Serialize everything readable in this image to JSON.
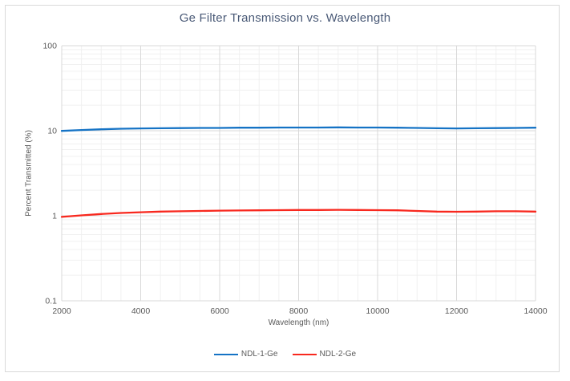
{
  "window": {
    "background": "#ffffff",
    "frame_border_color": "#d9d9d9"
  },
  "styles": {
    "title_color": "#4a5a77",
    "axis_text_color": "#595959",
    "grid_major_color": "#d9d9d9",
    "grid_minor_color": "#f0f0f0"
  },
  "chart_data": {
    "type": "line",
    "title": "Ge Filter Transmission vs. Wavelength",
    "xlabel": "Wavelength (nm)",
    "ylabel": "Percent Transmitted (%)",
    "x_range": [
      2000,
      14000
    ],
    "x_major_ticks": [
      2000,
      4000,
      6000,
      8000,
      10000,
      12000,
      14000
    ],
    "x_minor_step": 500,
    "y_scale": "log",
    "y_range": [
      0.1,
      100
    ],
    "y_major_ticks": [
      100,
      10,
      1,
      0.1
    ],
    "y_major_tick_labels": [
      "100",
      "10",
      "1",
      "0.1"
    ],
    "grid": {
      "major": true,
      "minor": true
    },
    "legend_position": "bottom",
    "x": [
      2000,
      2500,
      3000,
      3500,
      4000,
      4500,
      5000,
      5500,
      6000,
      6500,
      7000,
      7500,
      8000,
      8500,
      9000,
      9500,
      10000,
      10500,
      11000,
      11500,
      12000,
      12500,
      13000,
      13500,
      14000
    ],
    "series": [
      {
        "name": "NDL-1-Ge",
        "color": "#1573c5",
        "values": [
          9.95,
          10.2,
          10.4,
          10.55,
          10.65,
          10.7,
          10.75,
          10.8,
          10.8,
          10.85,
          10.85,
          10.9,
          10.9,
          10.9,
          10.95,
          10.9,
          10.9,
          10.85,
          10.8,
          10.7,
          10.65,
          10.7,
          10.75,
          10.8,
          10.85
        ]
      },
      {
        "name": "NDL-2-Ge",
        "color": "#f8281e",
        "values": [
          0.97,
          1.01,
          1.05,
          1.08,
          1.1,
          1.12,
          1.13,
          1.14,
          1.15,
          1.155,
          1.16,
          1.165,
          1.17,
          1.17,
          1.175,
          1.17,
          1.165,
          1.16,
          1.14,
          1.12,
          1.115,
          1.12,
          1.13,
          1.13,
          1.12
        ]
      }
    ]
  }
}
